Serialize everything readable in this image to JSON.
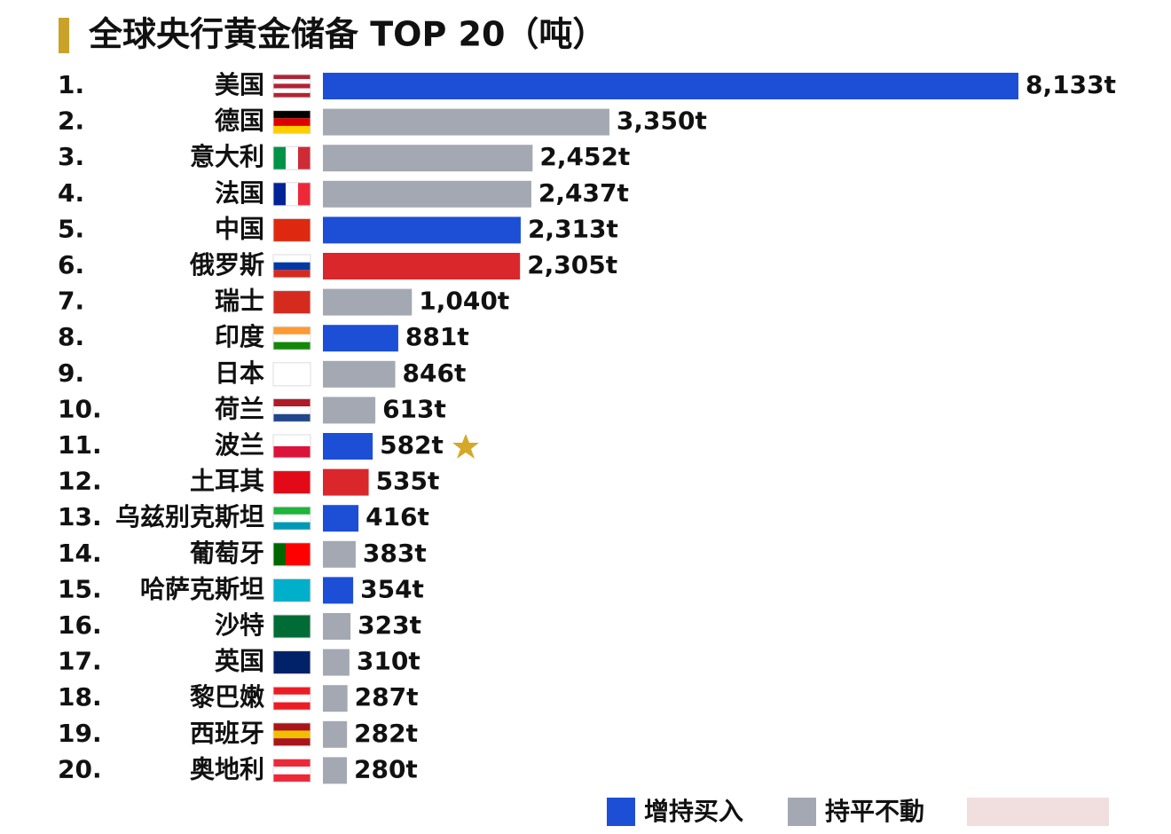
{
  "chart_data": {
    "type": "bar",
    "orientation": "horizontal",
    "title": "全球央行黄金储备 TOP 20（吨）",
    "ranks": [
      "1.",
      "2.",
      "3.",
      "4.",
      "5.",
      "6.",
      "7.",
      "8.",
      "9.",
      "10.",
      "11.",
      "12.",
      "13.",
      "14.",
      "15.",
      "16.",
      "17.",
      "18.",
      "19.",
      "20."
    ],
    "categories": [
      "美国",
      "德国",
      "意大利",
      "法国",
      "中国",
      "俄罗斯",
      "瑞士",
      "印度",
      "日本",
      "荷兰",
      "波兰",
      "土耳其",
      "乌兹别克斯坦",
      "葡萄牙",
      "哈萨克斯坦",
      "沙特",
      "英国",
      "黎巴嫩",
      "西班牙",
      "奥地利"
    ],
    "values": [
      8133,
      3350,
      2452,
      2437,
      2313,
      2305,
      1040,
      881,
      846,
      613,
      582,
      535,
      416,
      383,
      354,
      323,
      310,
      287,
      282,
      280
    ],
    "value_labels": [
      "8,133t",
      "3,350t",
      "2,452t",
      "2,437t",
      "2,313t",
      "2,305t",
      "1,040t",
      "881t",
      "846t",
      "613t",
      "582t",
      "535t",
      "416t",
      "383t",
      "354t",
      "323t",
      "310t",
      "287t",
      "282t",
      "280t"
    ],
    "colors": [
      "#1d4fd6",
      "#a4a8b3",
      "#a4a8b3",
      "#a4a8b3",
      "#1d4fd6",
      "#d9272b",
      "#a4a8b3",
      "#1d4fd6",
      "#a4a8b3",
      "#a4a8b3",
      "#1d4fd6",
      "#d9272b",
      "#1d4fd6",
      "#a4a8b3",
      "#1d4fd6",
      "#a4a8b3",
      "#a4a8b3",
      "#a4a8b3",
      "#a4a8b3",
      "#a4a8b3"
    ],
    "xlim": [
      0,
      8133
    ],
    "legend": [
      {
        "name": "增持买入",
        "color": "#1d4fd6"
      },
      {
        "name": "持平不動",
        "color": "#a4a8b3"
      }
    ]
  }
}
